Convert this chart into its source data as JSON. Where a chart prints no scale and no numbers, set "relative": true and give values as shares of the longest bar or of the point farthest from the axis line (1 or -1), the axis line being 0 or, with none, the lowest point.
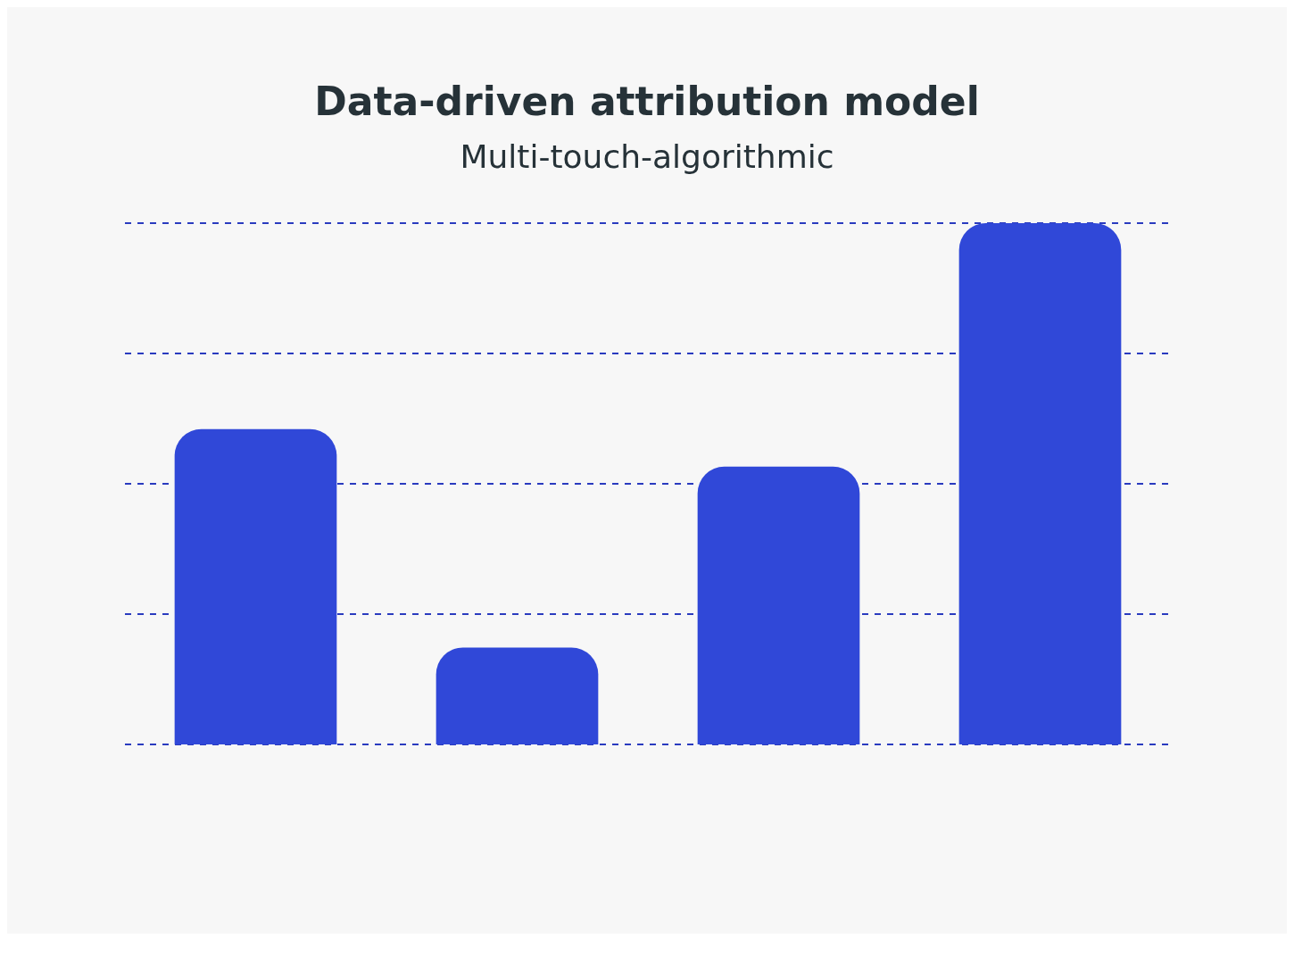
{
  "chart_data": {
    "type": "bar",
    "title": "Data-driven attribution model",
    "subtitle": "Multi-touch-algorithmic",
    "relative": true,
    "categories": [
      null,
      null,
      null,
      null
    ],
    "values": [
      0.605,
      0.186,
      0.533,
      1
    ],
    "color": "#3048d8",
    "ref_lines": [
      {
        "axis": "y",
        "value": 0,
        "color": "#2a3bbf",
        "line_style": "dashed"
      },
      {
        "axis": "y",
        "value": 0.25,
        "color": "#2a3bbf",
        "line_style": "dashed"
      },
      {
        "axis": "y",
        "value": 0.5,
        "color": "#2a3bbf",
        "line_style": "dashed"
      },
      {
        "axis": "y",
        "value": 0.75,
        "color": "#2a3bbf",
        "line_style": "dashed"
      },
      {
        "axis": "y",
        "value": 1,
        "color": "#2a3bbf",
        "line_style": "dashed"
      }
    ]
  }
}
